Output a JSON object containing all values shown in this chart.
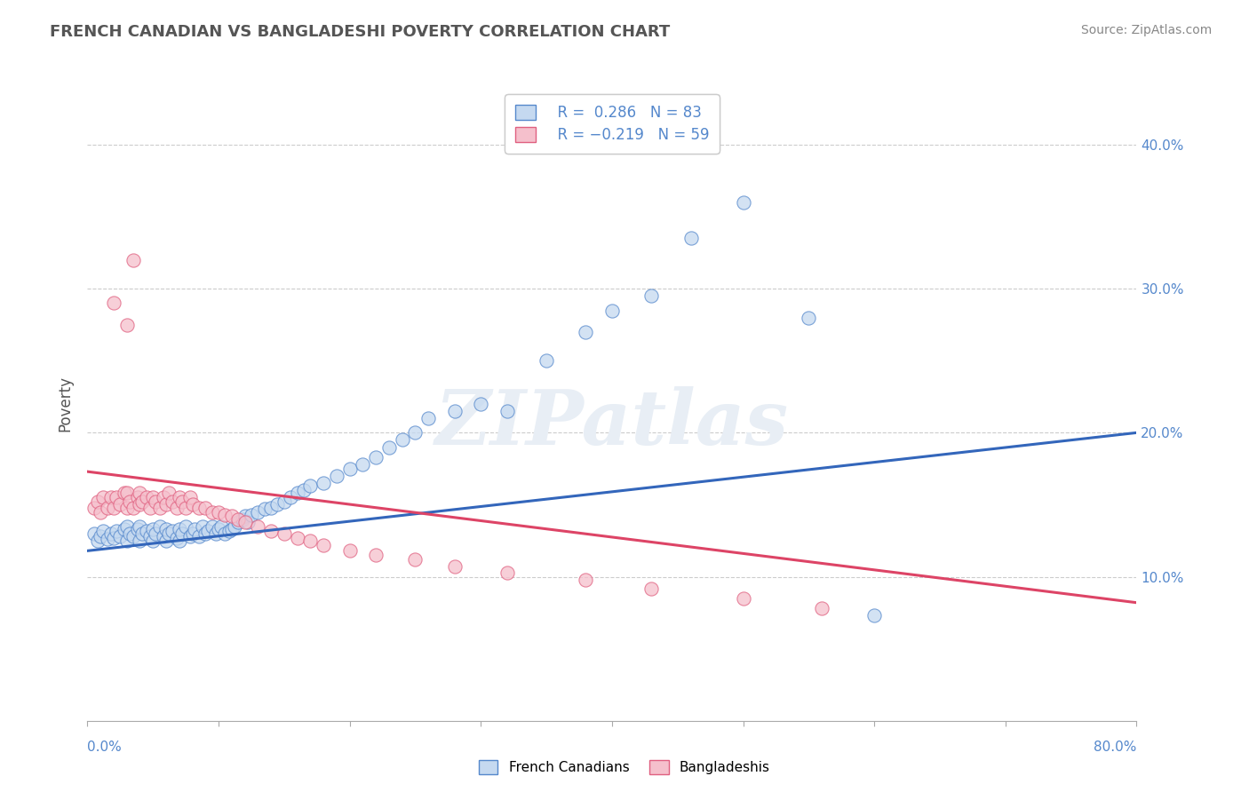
{
  "title": "FRENCH CANADIAN VS BANGLADESHI POVERTY CORRELATION CHART",
  "source": "Source: ZipAtlas.com",
  "ylabel": "Poverty",
  "xmin": 0.0,
  "xmax": 0.8,
  "ymin": 0.0,
  "ymax": 0.44,
  "yticks": [
    0.1,
    0.2,
    0.3,
    0.4
  ],
  "ytick_labels": [
    "10.0%",
    "20.0%",
    "30.0%",
    "40.0%"
  ],
  "blue_fill": "#c5d9f0",
  "pink_fill": "#f5c0cc",
  "blue_edge": "#5588cc",
  "pink_edge": "#e06080",
  "blue_line": "#3366bb",
  "pink_line": "#dd4466",
  "legend_blue_r": "R =  0.286",
  "legend_blue_n": "N = 83",
  "legend_pink_r": "R = −0.219",
  "legend_pink_n": "N = 59",
  "watermark": "ZIPatlas",
  "blue_trend_x0": 0.0,
  "blue_trend_y0": 0.118,
  "blue_trend_x1": 0.8,
  "blue_trend_y1": 0.2,
  "pink_trend_x0": 0.0,
  "pink_trend_y0": 0.173,
  "pink_trend_x1": 0.8,
  "pink_trend_y1": 0.082,
  "xtick_positions": [
    0.0,
    0.1,
    0.2,
    0.3,
    0.4,
    0.5,
    0.6,
    0.7,
    0.8
  ],
  "blue_x": [
    0.005,
    0.008,
    0.01,
    0.012,
    0.015,
    0.018,
    0.02,
    0.022,
    0.025,
    0.028,
    0.03,
    0.03,
    0.032,
    0.035,
    0.038,
    0.04,
    0.04,
    0.042,
    0.045,
    0.048,
    0.05,
    0.05,
    0.052,
    0.055,
    0.058,
    0.06,
    0.06,
    0.062,
    0.065,
    0.068,
    0.07,
    0.07,
    0.072,
    0.075,
    0.078,
    0.08,
    0.082,
    0.085,
    0.088,
    0.09,
    0.092,
    0.095,
    0.098,
    0.1,
    0.102,
    0.105,
    0.108,
    0.11,
    0.112,
    0.115,
    0.118,
    0.12,
    0.122,
    0.125,
    0.13,
    0.135,
    0.14,
    0.145,
    0.15,
    0.155,
    0.16,
    0.165,
    0.17,
    0.18,
    0.19,
    0.2,
    0.21,
    0.22,
    0.23,
    0.24,
    0.25,
    0.26,
    0.28,
    0.3,
    0.32,
    0.35,
    0.38,
    0.4,
    0.43,
    0.46,
    0.5,
    0.55,
    0.6
  ],
  "blue_y": [
    0.13,
    0.125,
    0.128,
    0.132,
    0.126,
    0.13,
    0.127,
    0.132,
    0.128,
    0.133,
    0.125,
    0.135,
    0.13,
    0.128,
    0.133,
    0.125,
    0.135,
    0.13,
    0.132,
    0.128,
    0.125,
    0.133,
    0.13,
    0.135,
    0.128,
    0.125,
    0.133,
    0.13,
    0.132,
    0.127,
    0.125,
    0.133,
    0.13,
    0.135,
    0.128,
    0.13,
    0.133,
    0.128,
    0.135,
    0.13,
    0.132,
    0.135,
    0.13,
    0.133,
    0.135,
    0.13,
    0.132,
    0.133,
    0.135,
    0.138,
    0.14,
    0.142,
    0.138,
    0.143,
    0.145,
    0.147,
    0.148,
    0.15,
    0.152,
    0.155,
    0.158,
    0.16,
    0.163,
    0.165,
    0.17,
    0.175,
    0.178,
    0.183,
    0.19,
    0.195,
    0.2,
    0.21,
    0.215,
    0.22,
    0.215,
    0.25,
    0.27,
    0.285,
    0.295,
    0.335,
    0.36,
    0.28,
    0.073
  ],
  "pink_x": [
    0.005,
    0.008,
    0.01,
    0.012,
    0.015,
    0.018,
    0.02,
    0.022,
    0.025,
    0.028,
    0.03,
    0.03,
    0.032,
    0.035,
    0.038,
    0.04,
    0.04,
    0.042,
    0.045,
    0.048,
    0.05,
    0.052,
    0.055,
    0.058,
    0.06,
    0.062,
    0.065,
    0.068,
    0.07,
    0.072,
    0.075,
    0.078,
    0.08,
    0.085,
    0.09,
    0.095,
    0.1,
    0.105,
    0.11,
    0.115,
    0.12,
    0.13,
    0.14,
    0.15,
    0.16,
    0.17,
    0.18,
    0.2,
    0.22,
    0.25,
    0.28,
    0.32,
    0.38,
    0.43,
    0.5,
    0.56,
    0.02,
    0.03,
    0.035
  ],
  "pink_y": [
    0.148,
    0.152,
    0.145,
    0.155,
    0.148,
    0.155,
    0.148,
    0.155,
    0.15,
    0.158,
    0.148,
    0.158,
    0.152,
    0.148,
    0.155,
    0.15,
    0.158,
    0.152,
    0.155,
    0.148,
    0.155,
    0.152,
    0.148,
    0.155,
    0.15,
    0.158,
    0.152,
    0.148,
    0.155,
    0.152,
    0.148,
    0.155,
    0.15,
    0.148,
    0.148,
    0.145,
    0.145,
    0.143,
    0.142,
    0.14,
    0.138,
    0.135,
    0.132,
    0.13,
    0.127,
    0.125,
    0.122,
    0.118,
    0.115,
    0.112,
    0.107,
    0.103,
    0.098,
    0.092,
    0.085,
    0.078,
    0.29,
    0.275,
    0.32
  ]
}
